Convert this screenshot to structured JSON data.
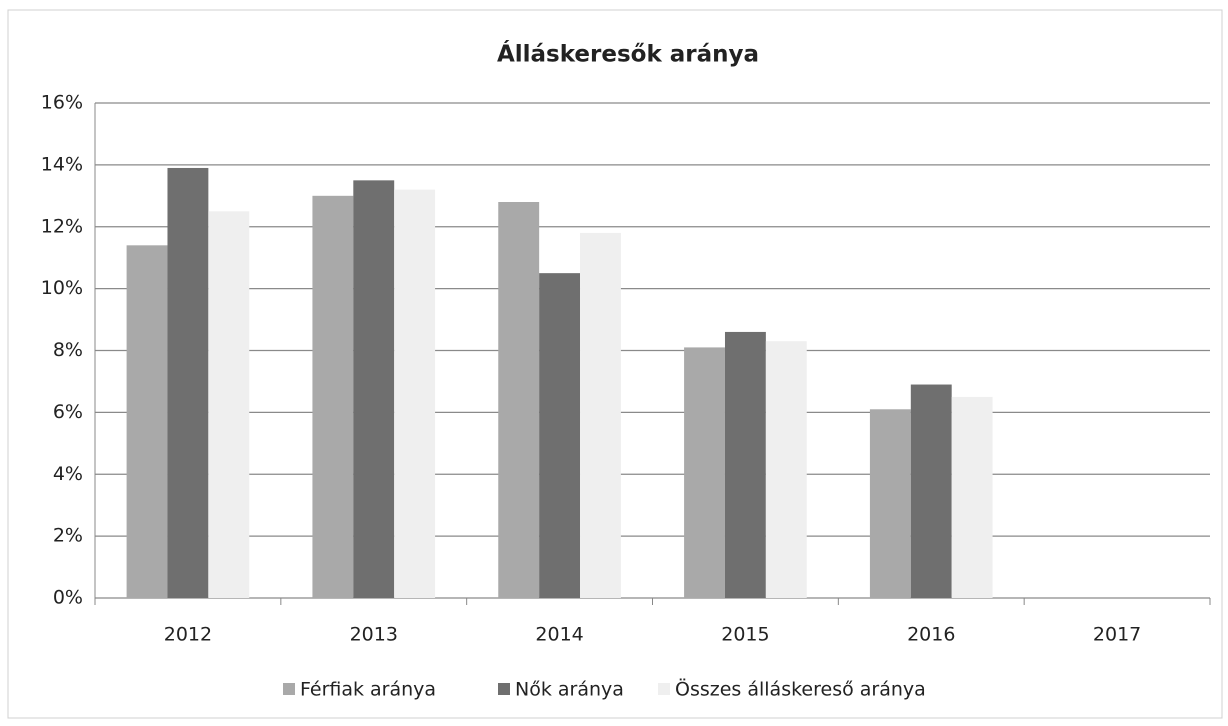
{
  "chart_data": {
    "type": "bar",
    "title": "Álláskeresők aránya",
    "categories": [
      "2012",
      "2013",
      "2014",
      "2015",
      "2016",
      "2017"
    ],
    "series": [
      {
        "name": "Férfiak aránya",
        "color": "#a9a9a9",
        "values": [
          11.4,
          13.0,
          12.8,
          8.1,
          6.1,
          null
        ]
      },
      {
        "name": "Nők aránya",
        "color": "#6f6f6f",
        "values": [
          13.9,
          13.5,
          10.5,
          8.6,
          6.9,
          null
        ]
      },
      {
        "name": "Összes álláskereső aránya",
        "color": "#efefef",
        "values": [
          12.5,
          13.2,
          11.8,
          8.3,
          6.5,
          null
        ]
      }
    ],
    "ylim": [
      0,
      16
    ],
    "yticks": [
      {
        "value": 0,
        "label": "0%"
      },
      {
        "value": 2,
        "label": "2%"
      },
      {
        "value": 4,
        "label": "4%"
      },
      {
        "value": 6,
        "label": "6%"
      },
      {
        "value": 8,
        "label": "8%"
      },
      {
        "value": 10,
        "label": "10%"
      },
      {
        "value": 12,
        "label": "12%"
      },
      {
        "value": 14,
        "label": "14%"
      },
      {
        "value": 16,
        "label": "16%"
      }
    ],
    "grid": true,
    "legend": "bottom"
  }
}
